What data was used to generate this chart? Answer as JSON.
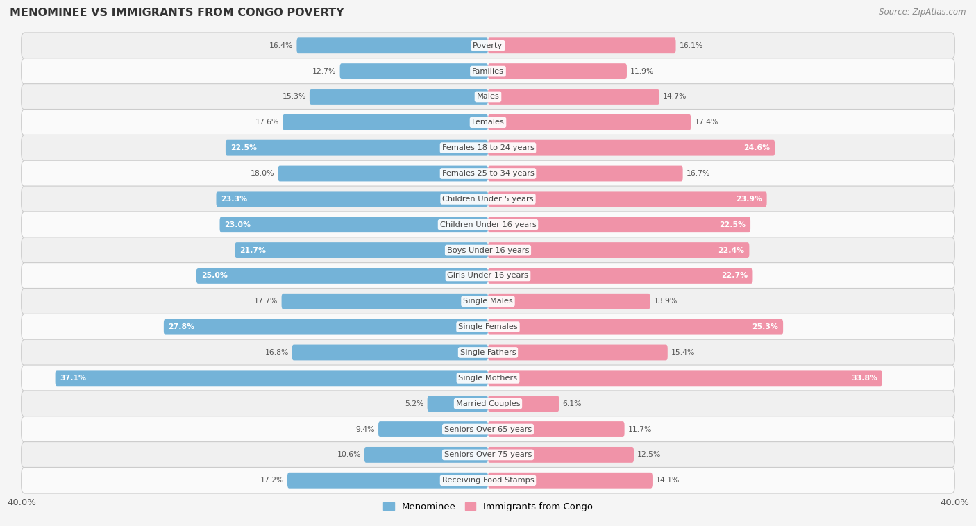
{
  "title": "MENOMINEE VS IMMIGRANTS FROM CONGO POVERTY",
  "source": "Source: ZipAtlas.com",
  "categories": [
    "Poverty",
    "Families",
    "Males",
    "Females",
    "Females 18 to 24 years",
    "Females 25 to 34 years",
    "Children Under 5 years",
    "Children Under 16 years",
    "Boys Under 16 years",
    "Girls Under 16 years",
    "Single Males",
    "Single Females",
    "Single Fathers",
    "Single Mothers",
    "Married Couples",
    "Seniors Over 65 years",
    "Seniors Over 75 years",
    "Receiving Food Stamps"
  ],
  "menominee": [
    16.4,
    12.7,
    15.3,
    17.6,
    22.5,
    18.0,
    23.3,
    23.0,
    21.7,
    25.0,
    17.7,
    27.8,
    16.8,
    37.1,
    5.2,
    9.4,
    10.6,
    17.2
  ],
  "congo": [
    16.1,
    11.9,
    14.7,
    17.4,
    24.6,
    16.7,
    23.9,
    22.5,
    22.4,
    22.7,
    13.9,
    25.3,
    15.4,
    33.8,
    6.1,
    11.7,
    12.5,
    14.1
  ],
  "menominee_color": "#74B3D8",
  "congo_color": "#F093A8",
  "background_color": "#f5f5f5",
  "row_light_color": "#f0f0f0",
  "row_dark_color": "#e2e2e2",
  "max_val": 40.0,
  "legend_menominee": "Menominee",
  "legend_congo": "Immigrants from Congo",
  "inside_label_threshold": 20.0,
  "bar_height": 0.62
}
